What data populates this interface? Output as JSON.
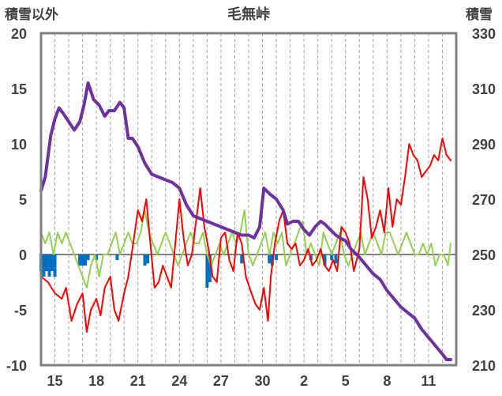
{
  "chart_data": {
    "type": "line",
    "title": "毛無峠",
    "y_left_label": "積雪以外",
    "y_right_label": "積雪",
    "y_left_range": [
      -10,
      20
    ],
    "y_left_ticks": [
      "20",
      "15",
      "10",
      "5",
      "0",
      "-5",
      "-10"
    ],
    "y_right_range": [
      210,
      330
    ],
    "y_right_ticks": [
      "330",
      "310",
      "290",
      "270",
      "250",
      "230",
      "210"
    ],
    "x_range_days": [
      14,
      44
    ],
    "x_tick_labels": [
      "15",
      "18",
      "21",
      "24",
      "27",
      "30",
      "2",
      "5",
      "8",
      "11"
    ],
    "grid": "vertical dashed daily",
    "colors": {
      "snow_depth": "#7030a0",
      "temperature": "#ff0000",
      "snowfall": "#92d050",
      "precipitation": "#0070c0",
      "frame": "#808080",
      "grid": "#a6a6a6"
    },
    "series": [
      {
        "key": "snow_depth",
        "axis": "right",
        "points": [
          [
            14.0,
            273
          ],
          [
            14.3,
            278
          ],
          [
            14.7,
            293
          ],
          [
            15.0,
            299
          ],
          [
            15.3,
            303
          ],
          [
            15.6,
            301
          ],
          [
            16.0,
            298
          ],
          [
            16.4,
            295
          ],
          [
            16.8,
            298
          ],
          [
            17.1,
            304
          ],
          [
            17.4,
            312
          ],
          [
            17.8,
            306
          ],
          [
            18.2,
            304
          ],
          [
            18.6,
            300
          ],
          [
            18.9,
            302
          ],
          [
            19.3,
            302
          ],
          [
            19.7,
            305
          ],
          [
            20.0,
            303
          ],
          [
            20.3,
            292
          ],
          [
            20.6,
            292
          ],
          [
            21.0,
            289
          ],
          [
            21.5,
            283
          ],
          [
            22.0,
            279
          ],
          [
            22.5,
            278
          ],
          [
            23.0,
            277
          ],
          [
            23.5,
            276
          ],
          [
            24.0,
            274
          ],
          [
            24.5,
            268
          ],
          [
            25.0,
            264
          ],
          [
            25.5,
            263
          ],
          [
            26.0,
            262
          ],
          [
            26.5,
            261
          ],
          [
            27.0,
            260
          ],
          [
            27.5,
            259
          ],
          [
            28.0,
            258
          ],
          [
            28.5,
            257
          ],
          [
            29.0,
            257
          ],
          [
            29.4,
            256
          ],
          [
            29.8,
            260
          ],
          [
            30.1,
            274
          ],
          [
            30.5,
            272
          ],
          [
            31.0,
            270
          ],
          [
            31.5,
            266
          ],
          [
            31.8,
            261
          ],
          [
            32.2,
            262
          ],
          [
            32.6,
            262
          ],
          [
            33.0,
            259
          ],
          [
            33.4,
            257
          ],
          [
            33.8,
            260
          ],
          [
            34.2,
            262
          ],
          [
            34.5,
            261
          ],
          [
            34.9,
            259
          ],
          [
            35.3,
            257
          ],
          [
            35.6,
            256
          ],
          [
            36.0,
            255
          ],
          [
            36.4,
            252
          ],
          [
            37.0,
            249
          ],
          [
            37.5,
            246
          ],
          [
            38.0,
            243
          ],
          [
            38.5,
            241
          ],
          [
            39.0,
            237
          ],
          [
            39.5,
            234
          ],
          [
            40.0,
            231
          ],
          [
            40.5,
            229
          ],
          [
            41.0,
            227
          ],
          [
            41.5,
            223
          ],
          [
            42.0,
            220
          ],
          [
            42.5,
            217
          ],
          [
            43.0,
            214
          ],
          [
            43.3,
            212
          ],
          [
            43.6,
            212
          ]
        ]
      },
      {
        "key": "temperature",
        "axis": "left",
        "points": [
          [
            14.0,
            -2.0
          ],
          [
            14.5,
            -2.5
          ],
          [
            15.0,
            -3.5
          ],
          [
            15.5,
            -4.0
          ],
          [
            15.8,
            -3.0
          ],
          [
            16.2,
            -6.0
          ],
          [
            16.6,
            -4.5
          ],
          [
            17.0,
            -3.5
          ],
          [
            17.3,
            -7.0
          ],
          [
            17.6,
            -5.0
          ],
          [
            18.0,
            -4.0
          ],
          [
            18.3,
            -5.5
          ],
          [
            18.6,
            -3.0
          ],
          [
            19.0,
            -2.0
          ],
          [
            19.3,
            -5.0
          ],
          [
            19.6,
            -6.0
          ],
          [
            20.0,
            -3.5
          ],
          [
            20.3,
            -2.0
          ],
          [
            20.6,
            0.5
          ],
          [
            21.0,
            4.0
          ],
          [
            21.3,
            3.0
          ],
          [
            21.6,
            5.0
          ],
          [
            21.9,
            1.0
          ],
          [
            22.2,
            -3.0
          ],
          [
            22.5,
            -2.5
          ],
          [
            22.8,
            -1.0
          ],
          [
            23.1,
            -2.0
          ],
          [
            23.4,
            -3.0
          ],
          [
            23.7,
            1.0
          ],
          [
            24.0,
            5.0
          ],
          [
            24.3,
            1.5
          ],
          [
            24.6,
            -1.0
          ],
          [
            24.9,
            0.0
          ],
          [
            25.2,
            3.0
          ],
          [
            25.5,
            6.0
          ],
          [
            25.8,
            2.5
          ],
          [
            26.1,
            0.5
          ],
          [
            26.4,
            -2.0
          ],
          [
            26.7,
            -2.5
          ],
          [
            27.0,
            1.5
          ],
          [
            27.3,
            2.0
          ],
          [
            27.6,
            -0.5
          ],
          [
            27.9,
            -1.5
          ],
          [
            28.2,
            2.0
          ],
          [
            28.5,
            1.0
          ],
          [
            28.8,
            -2.0
          ],
          [
            29.2,
            -3.5
          ],
          [
            29.5,
            -4.5
          ],
          [
            29.8,
            -5.0
          ],
          [
            30.1,
            -3.0
          ],
          [
            30.4,
            -6.0
          ],
          [
            30.6,
            -2.0
          ],
          [
            30.9,
            1.0
          ],
          [
            31.2,
            3.0
          ],
          [
            31.5,
            4.0
          ],
          [
            31.8,
            1.0
          ],
          [
            32.1,
            0.5
          ],
          [
            32.4,
            1.0
          ],
          [
            32.7,
            -1.0
          ],
          [
            33.0,
            -0.5
          ],
          [
            33.3,
            0.5
          ],
          [
            33.6,
            -1.0
          ],
          [
            33.9,
            -0.5
          ],
          [
            34.2,
            0.5
          ],
          [
            34.5,
            -1.0
          ],
          [
            34.8,
            -1.5
          ],
          [
            35.1,
            -0.5
          ],
          [
            35.4,
            -1.5
          ],
          [
            35.7,
            2.5
          ],
          [
            36.0,
            2.0
          ],
          [
            36.3,
            1.0
          ],
          [
            36.6,
            -1.5
          ],
          [
            37.0,
            0.5
          ],
          [
            37.3,
            7.0
          ],
          [
            37.6,
            5.0
          ],
          [
            37.9,
            1.5
          ],
          [
            38.2,
            2.5
          ],
          [
            38.5,
            4.0
          ],
          [
            38.8,
            2.0
          ],
          [
            39.1,
            6.0
          ],
          [
            39.4,
            2.5
          ],
          [
            39.7,
            5.0
          ],
          [
            40.0,
            4.5
          ],
          [
            40.3,
            7.0
          ],
          [
            40.6,
            10.0
          ],
          [
            40.9,
            9.0
          ],
          [
            41.2,
            8.5
          ],
          [
            41.5,
            7.0
          ],
          [
            41.8,
            7.5
          ],
          [
            42.1,
            8.0
          ],
          [
            42.4,
            9.0
          ],
          [
            42.7,
            8.5
          ],
          [
            43.0,
            10.5
          ],
          [
            43.3,
            9.0
          ],
          [
            43.6,
            8.5
          ]
        ]
      },
      {
        "key": "snowfall",
        "axis": "left",
        "points": [
          [
            14.0,
            2.0
          ],
          [
            14.3,
            1.0
          ],
          [
            14.6,
            2.0
          ],
          [
            14.9,
            0.0
          ],
          [
            15.2,
            2.0
          ],
          [
            15.5,
            1.0
          ],
          [
            15.8,
            2.0
          ],
          [
            16.1,
            1.0
          ],
          [
            16.4,
            0.0
          ],
          [
            16.7,
            -1.0
          ],
          [
            17.0,
            -2.0
          ],
          [
            17.3,
            -3.0
          ],
          [
            17.6,
            -1.0
          ],
          [
            17.9,
            0.0
          ],
          [
            18.2,
            -2.0
          ],
          [
            18.5,
            0.0
          ],
          [
            18.8,
            0.0
          ],
          [
            19.1,
            1.0
          ],
          [
            19.4,
            2.0
          ],
          [
            19.7,
            0.0
          ],
          [
            20.0,
            1.0
          ],
          [
            20.3,
            2.0
          ],
          [
            20.6,
            1.0
          ],
          [
            20.9,
            1.0
          ],
          [
            21.2,
            2.0
          ],
          [
            21.5,
            4.0
          ],
          [
            21.8,
            2.0
          ],
          [
            22.1,
            1.0
          ],
          [
            22.4,
            0.0
          ],
          [
            22.7,
            1.0
          ],
          [
            23.0,
            2.0
          ],
          [
            23.3,
            1.0
          ],
          [
            23.6,
            0.0
          ],
          [
            23.9,
            -1.0
          ],
          [
            24.2,
            0.0
          ],
          [
            24.5,
            1.0
          ],
          [
            24.8,
            2.0
          ],
          [
            25.1,
            1.0
          ],
          [
            25.4,
            1.0
          ],
          [
            25.7,
            2.0
          ],
          [
            26.0,
            0.0
          ],
          [
            26.3,
            -1.0
          ],
          [
            26.6,
            0.0
          ],
          [
            26.9,
            1.0
          ],
          [
            27.2,
            0.0
          ],
          [
            27.5,
            1.0
          ],
          [
            27.8,
            2.0
          ],
          [
            28.1,
            1.0
          ],
          [
            28.4,
            2.0
          ],
          [
            28.7,
            4.0
          ],
          [
            29.0,
            0.0
          ],
          [
            29.3,
            -1.0
          ],
          [
            29.6,
            0.0
          ],
          [
            29.9,
            1.0
          ],
          [
            30.2,
            2.0
          ],
          [
            30.5,
            0.0
          ],
          [
            30.8,
            2.0
          ],
          [
            31.1,
            1.0
          ],
          [
            31.4,
            2.0
          ],
          [
            31.7,
            -1.0
          ],
          [
            32.0,
            0.0
          ],
          [
            32.3,
            1.0
          ],
          [
            32.6,
            2.0
          ],
          [
            32.9,
            3.0
          ],
          [
            33.2,
            0.0
          ],
          [
            33.5,
            1.0
          ],
          [
            33.8,
            0.0
          ],
          [
            34.1,
            -1.0
          ],
          [
            34.4,
            2.0
          ],
          [
            34.7,
            1.0
          ],
          [
            35.0,
            0.0
          ],
          [
            35.3,
            1.0
          ],
          [
            35.6,
            2.0
          ],
          [
            35.9,
            0.0
          ],
          [
            36.2,
            -1.0
          ],
          [
            36.5,
            0.0
          ],
          [
            36.8,
            1.0
          ],
          [
            37.1,
            2.0
          ],
          [
            37.4,
            0.0
          ],
          [
            37.7,
            1.0
          ],
          [
            38.0,
            2.0
          ],
          [
            38.3,
            1.0
          ],
          [
            38.6,
            0.0
          ],
          [
            38.9,
            2.0
          ],
          [
            39.2,
            2.0
          ],
          [
            39.5,
            1.0
          ],
          [
            39.8,
            0.0
          ],
          [
            40.1,
            1.0
          ],
          [
            40.4,
            2.0
          ],
          [
            40.7,
            1.0
          ],
          [
            41.0,
            0.0
          ],
          [
            41.3,
            0.0
          ],
          [
            41.6,
            1.0
          ],
          [
            41.9,
            0.0
          ],
          [
            42.2,
            1.0
          ],
          [
            42.5,
            -1.0
          ],
          [
            42.8,
            0.0
          ],
          [
            43.1,
            0.0
          ],
          [
            43.4,
            -1.0
          ],
          [
            43.6,
            1.0
          ]
        ]
      },
      {
        "key": "precipitation",
        "axis": "left",
        "type": "bar",
        "bars": [
          [
            14.0,
            -1.5
          ],
          [
            14.2,
            -2.0
          ],
          [
            14.4,
            -1.5
          ],
          [
            14.6,
            -2.0
          ],
          [
            14.8,
            -1.5
          ],
          [
            15.0,
            -2.0
          ],
          [
            16.8,
            -1.0
          ],
          [
            17.0,
            -1.0
          ],
          [
            17.2,
            -1.0
          ],
          [
            17.4,
            -0.5
          ],
          [
            18.0,
            -0.5
          ],
          [
            19.5,
            -0.5
          ],
          [
            21.5,
            -1.0
          ],
          [
            21.7,
            -0.8
          ],
          [
            26.0,
            -3.0
          ],
          [
            26.2,
            -2.5
          ],
          [
            28.5,
            -0.8
          ],
          [
            30.5,
            -0.8
          ],
          [
            30.7,
            -1.0
          ],
          [
            31.0,
            -0.5
          ],
          [
            33.5,
            -0.5
          ],
          [
            34.5,
            -1.0
          ],
          [
            35.0,
            -0.5
          ],
          [
            35.3,
            -0.8
          ]
        ]
      }
    ]
  }
}
